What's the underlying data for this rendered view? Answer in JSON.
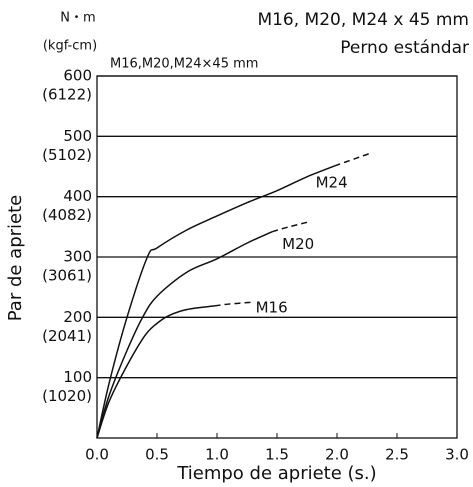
{
  "chart_data": {
    "type": "line",
    "title": "M16, M20, M24 x 45 mm",
    "subtitle": "Perno estándar",
    "annotation": "M16,M20,M24×45 mm",
    "y_unit": "N・m",
    "y_unit_secondary": "(kgf-cm)",
    "x_label": "Tiempo de apriete (s.)",
    "y_label": "Par de apriete",
    "xlim": [
      0,
      3
    ],
    "ylim": [
      0,
      600
    ],
    "xticks": [
      {
        "value": 0,
        "label": "0.0"
      },
      0.5,
      {
        "value": 1,
        "label": "1.0"
      },
      1.5,
      {
        "value": 2,
        "label": "2.0"
      },
      2.5,
      {
        "value": 3,
        "label": "3.0"
      }
    ],
    "yticks": [
      100,
      200,
      300,
      400,
      500,
      600
    ],
    "ytick_secondary_labels": [
      "(1020)",
      "(2041)",
      "(3061)",
      "(4082)",
      "(5102)",
      "(6122)"
    ],
    "grid": true,
    "series": [
      {
        "name": "M24",
        "color": "#111111",
        "x": [
          0,
          0.1,
          0.25,
          0.42,
          0.5,
          0.75,
          1.0,
          1.25,
          1.5,
          1.75,
          1.98
        ],
        "values": [
          0,
          90,
          200,
          300,
          315,
          345,
          368,
          390,
          410,
          433,
          451
        ]
      },
      {
        "color": "#111111",
        "style": "dashed",
        "x": [
          1.98,
          2.15,
          2.28
        ],
        "values": [
          451,
          463,
          472
        ]
      },
      {
        "name": "M20",
        "color": "#111111",
        "x": [
          0,
          0.1,
          0.25,
          0.38,
          0.5,
          0.75,
          1.0,
          1.25,
          1.46
        ],
        "values": [
          0,
          70,
          145,
          200,
          235,
          275,
          297,
          323,
          342
        ]
      },
      {
        "color": "#111111",
        "style": "dashed",
        "x": [
          1.46,
          1.6,
          1.76
        ],
        "values": [
          342,
          350,
          358
        ]
      },
      {
        "name": "M16",
        "color": "#111111",
        "x": [
          0,
          0.1,
          0.25,
          0.4,
          0.5,
          0.6,
          0.75,
          0.98
        ],
        "values": [
          0,
          60,
          120,
          170,
          190,
          203,
          213,
          219
        ]
      },
      {
        "color": "#111111",
        "style": "dashed",
        "x": [
          0.98,
          1.1,
          1.29
        ],
        "values": [
          219,
          222,
          225
        ]
      }
    ]
  }
}
